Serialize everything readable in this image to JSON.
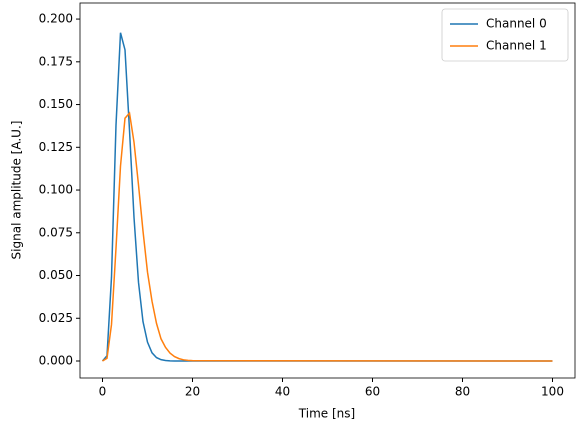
{
  "chart_data": {
    "type": "line",
    "xlabel": "Time [ns]",
    "ylabel": "Signal amplitude [A.U.]",
    "x": [
      0,
      1,
      2,
      3,
      4,
      5,
      6,
      7,
      8,
      9,
      10,
      11,
      12,
      13,
      14,
      15,
      16,
      17,
      18,
      19,
      20,
      100
    ],
    "series": [
      {
        "name": "Channel 0",
        "color": "#1f77b4",
        "values": [
          0,
          0.0031,
          0.049,
          0.138,
          0.192,
          0.182,
          0.135,
          0.084,
          0.046,
          0.023,
          0.011,
          0.0048,
          0.002,
          0.0008,
          0.0003,
          0.0001,
          0,
          0,
          0,
          0,
          0,
          0
        ]
      },
      {
        "name": "Channel 1",
        "color": "#ff7f0e",
        "values": [
          0,
          0.0016,
          0.0213,
          0.066,
          0.114,
          0.142,
          0.145,
          0.128,
          0.103,
          0.076,
          0.052,
          0.035,
          0.022,
          0.013,
          0.008,
          0.0046,
          0.0026,
          0.0014,
          0.0007,
          0.0004,
          0.0002,
          0
        ]
      }
    ],
    "xlim": [
      -5,
      105
    ],
    "xticks": [
      0,
      20,
      40,
      60,
      80,
      100
    ],
    "ylim": [
      -0.00994,
      0.2094
    ],
    "yticks": [
      {
        "value": 0,
        "label": "0.000"
      },
      {
        "value": 0.025,
        "label": "0.025"
      },
      {
        "value": 0.05,
        "label": "0.050"
      },
      {
        "value": 0.075,
        "label": "0.075"
      },
      {
        "value": 0.1,
        "label": "0.100"
      },
      {
        "value": 0.125,
        "label": "0.125"
      },
      {
        "value": 0.15,
        "label": "0.150"
      },
      {
        "value": 0.175,
        "label": "0.175"
      },
      {
        "value": 0.2,
        "label": "0.200"
      }
    ],
    "grid": false,
    "legend": "upper right"
  }
}
